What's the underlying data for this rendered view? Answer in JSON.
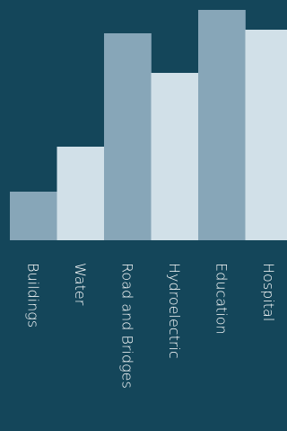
{
  "chart_data": {
    "type": "bar",
    "categories": [
      "Buildings",
      "Water",
      "Road and Bridges",
      "Hydroelectric",
      "Education",
      "Hospital"
    ],
    "values": [
      54,
      104,
      230,
      186,
      256,
      234
    ],
    "title": "",
    "xlabel": "",
    "ylabel": "",
    "ylim": [
      0,
      256
    ],
    "grid": false,
    "legend": "none",
    "colors": {
      "background": "#14465a",
      "bar_dark": "#87a6b8",
      "bar_light": "#d1e0e8",
      "label": "#ffffff"
    }
  }
}
